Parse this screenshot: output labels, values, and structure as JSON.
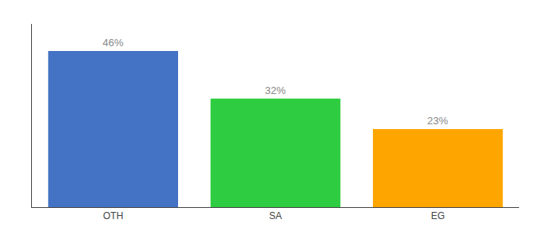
{
  "chart_data": {
    "type": "bar",
    "categories": [
      "OTH",
      "SA",
      "EG"
    ],
    "values": [
      46,
      32,
      23
    ],
    "value_labels": [
      "46%",
      "32%",
      "23%"
    ],
    "data_labels": true,
    "colors": [
      "#4472C4",
      "#2ECC40",
      "#FFA500"
    ],
    "ylim": [
      0,
      54
    ],
    "tick_labels": "x",
    "grid": false
  }
}
